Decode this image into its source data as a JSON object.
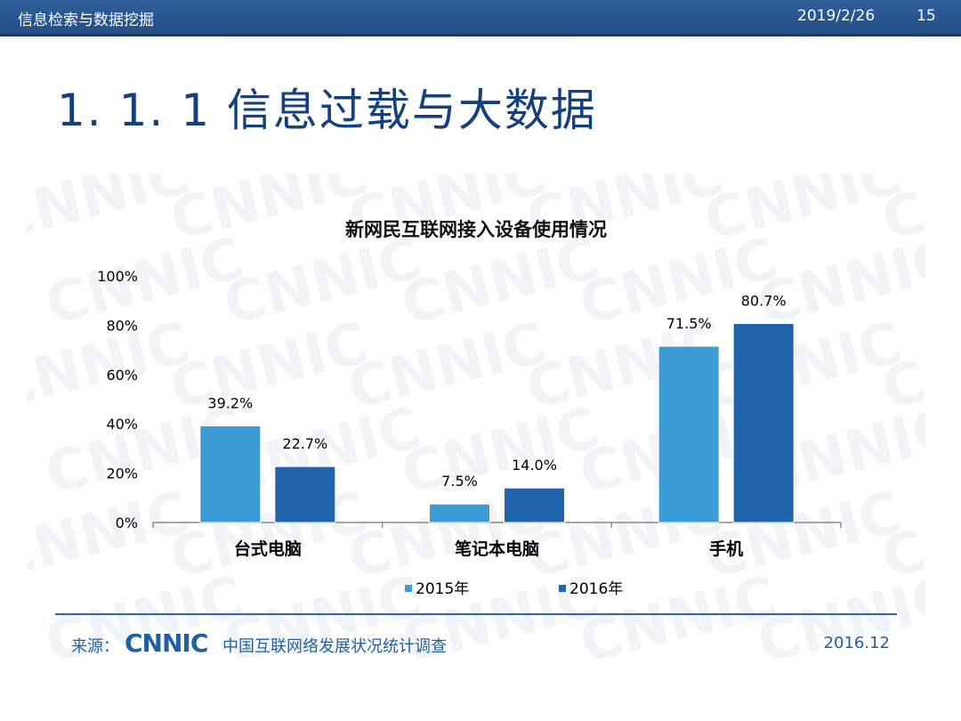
{
  "header": {
    "course": "信息检索与数据挖掘",
    "date": "2019/2/26",
    "page_number": "15"
  },
  "slide": {
    "title": "1. 1. 1  信息过载与大数据"
  },
  "watermark": {
    "text": "CNNIC"
  },
  "chart_data": {
    "type": "bar",
    "title": "新网民互联网接入设备使用情况",
    "categories": [
      "台式电脑",
      "笔记本电脑",
      "手机"
    ],
    "series": [
      {
        "name": "2015年",
        "values": [
          39.2,
          7.5,
          71.5
        ],
        "labels": [
          "39.2%",
          "7.5%",
          "71.5%"
        ],
        "color": "#3a9bd5"
      },
      {
        "name": "2016年",
        "values": [
          22.7,
          14.0,
          80.7
        ],
        "labels": [
          "22.7%",
          "14.0%",
          "80.7%"
        ],
        "color": "#1f64ad"
      }
    ],
    "yticks": [
      "0%",
      "20%",
      "40%",
      "60%",
      "80%",
      "100%"
    ],
    "ylim": [
      0,
      100
    ],
    "grid": false,
    "legend_position": "bottom"
  },
  "footer": {
    "source_label": "来源：",
    "logo_text": "CNNIC",
    "report_name": "中国互联网络发展状况统计调查",
    "report_date": "2016.12"
  },
  "colors": {
    "header_bar": "#2a5892",
    "title_text": "#14417e",
    "accent": "#1f5fa3"
  }
}
